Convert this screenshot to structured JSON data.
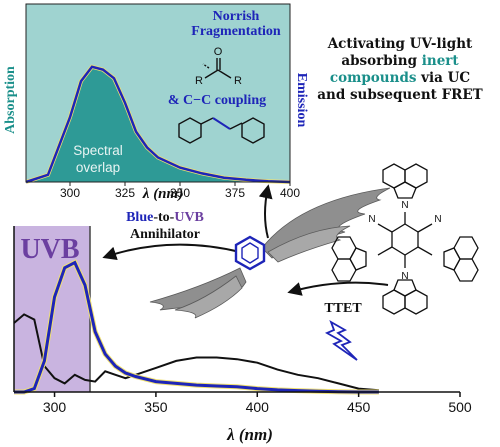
{
  "caption": {
    "line1": "Activating UV-light",
    "line2a": "absorbing ",
    "line2b": "inert",
    "line3a": "compounds",
    "line3b": " via UC",
    "line4": "and subsequent FRET"
  },
  "top_panel": {
    "ylabel_left": "Absorption",
    "ylabel_right": "Emission",
    "xlabel": "λ (nm)",
    "xticks": [
      "300",
      "325",
      "350",
      "375",
      "400"
    ],
    "overlap_line1": "Spectral",
    "overlap_line2": "overlap",
    "norrish_line1": "Norrish",
    "norrish_line2": "Fragmentation",
    "coupling": "& C−C coupling"
  },
  "bottom_panel": {
    "uvb_label": "UVB",
    "xlabel": "λ (nm)",
    "xticks": [
      "300",
      "350",
      "400",
      "450",
      "500"
    ]
  },
  "annihilator": {
    "line1_blue": "Blue",
    "line1_mid": "-to-",
    "line1_purple": "UVB",
    "line2": "Annihilator"
  },
  "ttet_label": "TTET",
  "sensitizer": {
    "cn_left": "N",
    "cn_right": "N",
    "n_atom": "N"
  },
  "colors": {
    "teal": "#1a8f8a",
    "blue_emission": "#1e25b8",
    "uvb_purple": "#6b3fa0",
    "uvb_fill": "#c9b4e0",
    "absorption_fill": "#2e9a96",
    "absorption_light": "#9fd3d0",
    "wing_gray": "#8a8a8a"
  },
  "chart_data": [
    {
      "type": "area",
      "xlabel": "λ (nm)",
      "xlim": [
        280,
        400
      ],
      "x": [
        280,
        290,
        300,
        305,
        310,
        315,
        320,
        325,
        330,
        335,
        340,
        350,
        360,
        370,
        380,
        390,
        400
      ],
      "series": [
        {
          "name": "Absorption",
          "values": [
            1.0,
            1.0,
            1.0,
            1.0,
            1.0,
            1.0,
            1.0,
            1.0,
            1.0,
            1.0,
            1.0,
            1.0,
            1.0,
            1.0,
            1.0,
            1.0,
            1.0
          ]
        },
        {
          "name": "Emission",
          "values": [
            0.0,
            0.05,
            0.45,
            0.7,
            0.8,
            0.78,
            0.72,
            0.55,
            0.35,
            0.24,
            0.17,
            0.1,
            0.06,
            0.03,
            0.015,
            0.005,
            0.0
          ]
        }
      ]
    },
    {
      "type": "line",
      "xlabel": "λ (nm)",
      "xlim": [
        280,
        500
      ],
      "x": [
        280,
        285,
        290,
        295,
        300,
        305,
        310,
        315,
        320,
        325,
        330,
        335,
        340,
        350,
        360,
        370,
        380,
        390,
        400,
        410,
        420,
        430,
        440,
        450,
        460
      ],
      "series": [
        {
          "name": "Sensitizer",
          "values": [
            0.4,
            0.45,
            0.42,
            0.15,
            0.08,
            0.05,
            0.1,
            0.07,
            0.06,
            0.12,
            0.1,
            0.08,
            0.1,
            0.14,
            0.18,
            0.2,
            0.2,
            0.19,
            0.17,
            0.13,
            0.1,
            0.08,
            0.05,
            0.02,
            0.01
          ]
        },
        {
          "name": "Annihilator emission",
          "values": [
            0.0,
            0.0,
            0.02,
            0.18,
            0.55,
            0.72,
            0.75,
            0.62,
            0.35,
            0.22,
            0.15,
            0.11,
            0.09,
            0.06,
            0.05,
            0.04,
            0.035,
            0.03,
            0.02,
            0.012,
            0.008,
            0.004,
            0.002,
            0.0,
            0.0
          ]
        }
      ]
    }
  ]
}
